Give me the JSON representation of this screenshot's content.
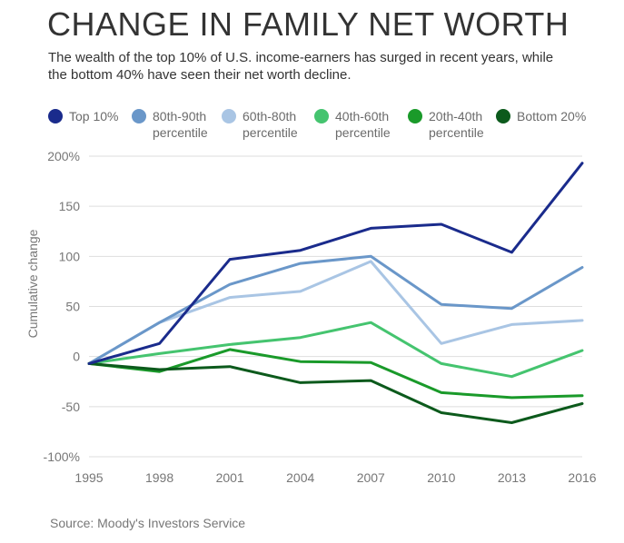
{
  "title": "CHANGE IN FAMILY NET WORTH",
  "subtitle": "The wealth of the top 10% of U.S. income-earners has surged in recent years, while the bottom 40% have seen their net worth decline.",
  "source": "Source: Moody's Investors Service",
  "legend": [
    {
      "line1": "Top 10%",
      "line2": "",
      "color": "#1a2b8c"
    },
    {
      "line1": "80th-90th",
      "line2": "percentile",
      "color": "#6a97c9"
    },
    {
      "line1": "60th-80th",
      "line2": "percentile",
      "color": "#a9c5e4"
    },
    {
      "line1": "40th-60th",
      "line2": "percentile",
      "color": "#45c46f"
    },
    {
      "line1": "20th-40th",
      "line2": "percentile",
      "color": "#1a9a2a"
    },
    {
      "line1": "Bottom 20%",
      "line2": "",
      "color": "#0c5a1c"
    }
  ],
  "chart_data": {
    "type": "line",
    "title": "CHANGE IN FAMILY NET WORTH",
    "xlabel": "",
    "ylabel": "Cumulative change",
    "x": [
      "1995",
      "1998",
      "2001",
      "2004",
      "2007",
      "2010",
      "2013",
      "2016"
    ],
    "ylim": [
      -100,
      200
    ],
    "yticks": [
      200,
      150,
      100,
      50,
      0,
      -50,
      -100
    ],
    "ytick_labels": [
      "200%",
      "150",
      "100",
      "50",
      "0",
      "-50",
      "-100%"
    ],
    "grid": true,
    "legend_position": "top",
    "series": [
      {
        "name": "Top 10%",
        "color": "#1a2b8c",
        "values": [
          -7,
          13,
          97,
          106,
          128,
          132,
          104,
          193
        ]
      },
      {
        "name": "80th-90th percentile",
        "color": "#6a97c9",
        "values": [
          -7,
          34,
          72,
          93,
          100,
          52,
          48,
          89
        ]
      },
      {
        "name": "60th-80th percentile",
        "color": "#a9c5e4",
        "values": [
          -7,
          34,
          59,
          65,
          95,
          13,
          32,
          36
        ]
      },
      {
        "name": "40th-60th percentile",
        "color": "#45c46f",
        "values": [
          -7,
          3,
          12,
          19,
          34,
          -7,
          -20,
          6
        ]
      },
      {
        "name": "20th-40th percentile",
        "color": "#1a9a2a",
        "values": [
          -7,
          -15,
          7,
          -5,
          -6,
          -36,
          -41,
          -39
        ]
      },
      {
        "name": "Bottom 20%",
        "color": "#0c5a1c",
        "values": [
          -7,
          -13,
          -10,
          -26,
          -24,
          -56,
          -66,
          -47
        ]
      }
    ]
  }
}
